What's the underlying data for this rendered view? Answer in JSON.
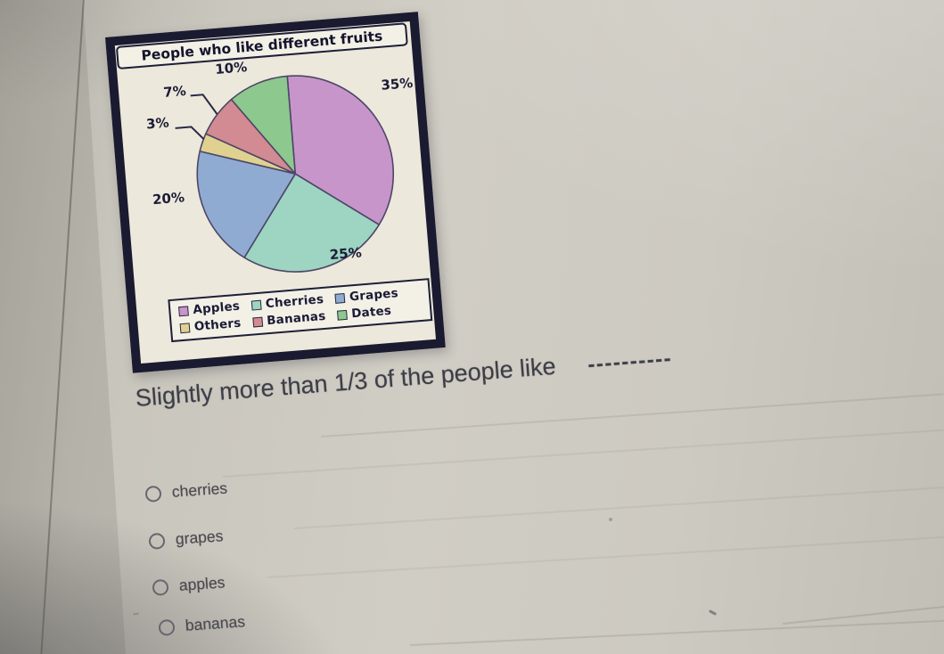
{
  "page": {
    "question": "Slightly more than 1/3 of the people like",
    "blank": "----------",
    "options": [
      {
        "label": "cherries",
        "selected": false
      },
      {
        "label": "grapes",
        "selected": false
      },
      {
        "label": "apples",
        "selected": false
      },
      {
        "label": "bananas",
        "selected": false
      }
    ]
  },
  "chart_data": {
    "type": "pie",
    "title": "People who like different fruits",
    "categories": [
      "Apples",
      "Cherries",
      "Grapes",
      "Others",
      "Bananas",
      "Dates"
    ],
    "values": [
      35,
      25,
      20,
      3,
      7,
      10
    ],
    "labels": [
      "35%",
      "25%",
      "20%",
      "3%",
      "7%",
      "10%"
    ],
    "colors": [
      "#c795ca",
      "#9dd4c2",
      "#90abd1",
      "#e0d191",
      "#d28b92",
      "#8dc88e"
    ],
    "outline_color": "#4c4766",
    "start_angle_deg": 0,
    "clockwise": true,
    "legend_rows": [
      [
        "Apples",
        "Cherries",
        "Grapes"
      ],
      [
        "Others",
        "Bananas",
        "Dates"
      ]
    ],
    "legend_position": "bottom-inside"
  }
}
